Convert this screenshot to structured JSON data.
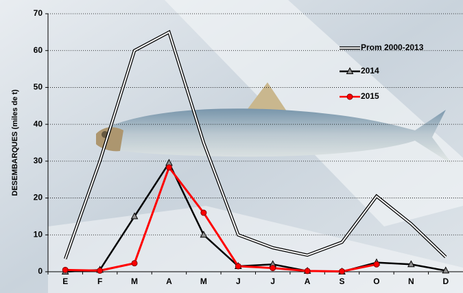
{
  "chart_data": {
    "type": "line",
    "y_label": "DESEMBARQUES   (miles de t)",
    "categories": [
      "E",
      "F",
      "M",
      "A",
      "M",
      "J",
      "J",
      "A",
      "S",
      "O",
      "N",
      "D"
    ],
    "series": [
      {
        "name": "Prom 2000-2013",
        "color": "#000000",
        "line_style": "double",
        "marker": "none",
        "values": [
          3.5,
          30,
          60,
          65,
          35,
          10,
          6.5,
          4.5,
          8,
          20.5,
          13,
          4
        ]
      },
      {
        "name": "2014",
        "color": "#000000",
        "line_style": "solid",
        "marker": "triangle",
        "values": [
          0,
          0.5,
          15,
          29.5,
          10,
          1.5,
          2,
          0.2,
          0,
          2.5,
          2,
          0.3
        ]
      },
      {
        "name": "2015",
        "color": "#ff0000",
        "line_style": "solid",
        "marker": "circle",
        "values": [
          0.5,
          0.3,
          2.3,
          28.3,
          16,
          1.5,
          1,
          0.2,
          0.1,
          2,
          null,
          null
        ]
      }
    ],
    "ylim": [
      0,
      70
    ],
    "yticks": [
      0,
      10,
      20,
      30,
      40,
      50,
      60,
      70
    ],
    "grid": true
  }
}
